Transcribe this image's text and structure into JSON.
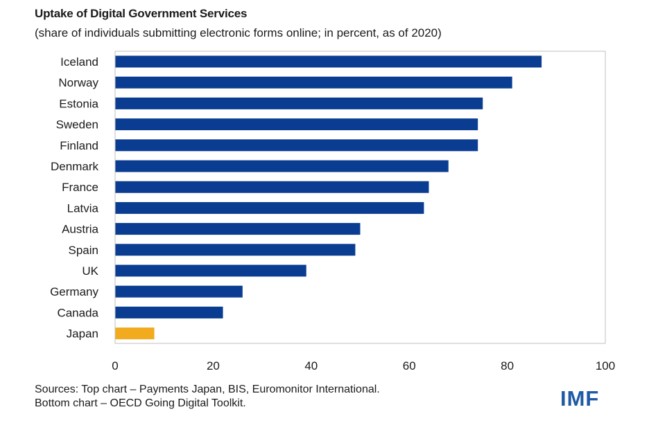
{
  "colors": {
    "bar": "#0a3d91",
    "highlight": "#f2aa1e",
    "logo": "#1f5aa6",
    "frame": "#bfbfbf"
  },
  "chart_data": {
    "type": "bar",
    "orientation": "horizontal",
    "title": "Uptake of Digital Government Services",
    "subtitle": "(share of individuals submitting electronic forms online; in percent, as of 2020)",
    "categories": [
      "Iceland",
      "Norway",
      "Estonia",
      "Sweden",
      "Finland",
      "Denmark",
      "France",
      "Latvia",
      "Austria",
      "Spain",
      "UK",
      "Germany",
      "Canada",
      "Japan"
    ],
    "values": [
      87,
      81,
      75,
      74,
      74,
      68,
      64,
      63,
      50,
      49,
      39,
      26,
      22,
      8
    ],
    "highlight": "Japan",
    "xlim": [
      0,
      100
    ],
    "xticks": [
      0,
      20,
      40,
      60,
      80,
      100
    ],
    "xlabel": "",
    "ylabel": "",
    "grid": false
  },
  "footer": {
    "sources_line1": "Sources: Top chart – Payments Japan, BIS, Euromonitor International.",
    "sources_line2": "Bottom chart – OECD Going Digital Toolkit.",
    "logo_text": "IMF"
  }
}
